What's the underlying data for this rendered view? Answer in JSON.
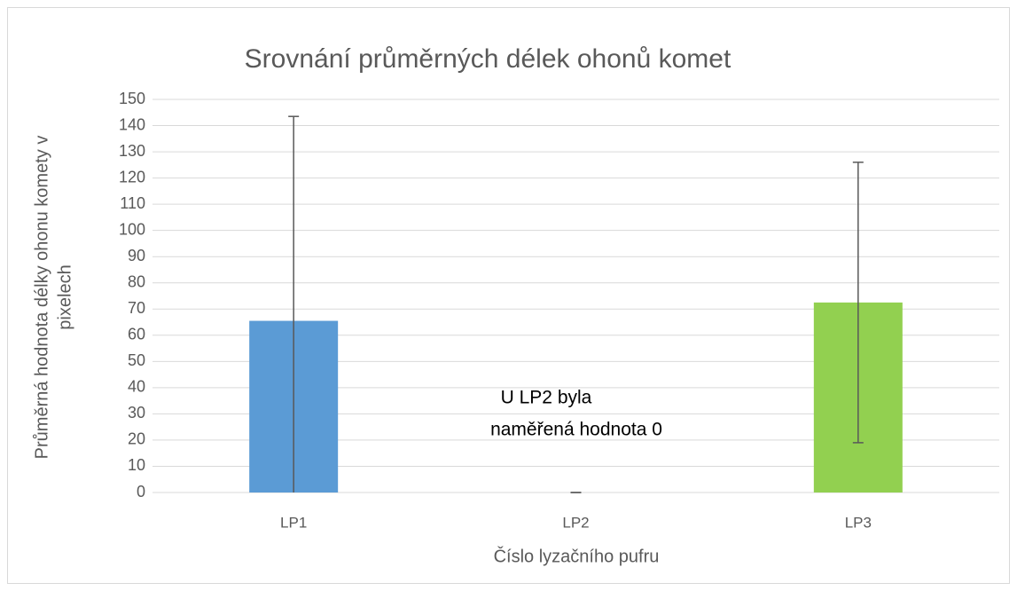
{
  "chart_data": {
    "type": "bar",
    "title": "Srovnání průměrných délek ohonů komet",
    "x_label": "Číslo lyzačního pufru",
    "y_label": [
      "Průměrná hodnota délky ohonu komety v",
      "pixelech"
    ],
    "annotation": [
      "U LP2  byla",
      "naměřená hodnota 0"
    ],
    "categories": [
      "LP1",
      "LP2",
      "LP3"
    ],
    "values": [
      65.5,
      0,
      72.5
    ],
    "errors": [
      78,
      0,
      53.5
    ],
    "colors": [
      "#5b9bd5",
      "#ed7d31",
      "#92d050"
    ],
    "ylim": [
      0,
      150
    ],
    "yticks": [
      0,
      10,
      20,
      30,
      40,
      50,
      60,
      70,
      80,
      90,
      100,
      110,
      120,
      130,
      140,
      150
    ],
    "grid": true
  }
}
